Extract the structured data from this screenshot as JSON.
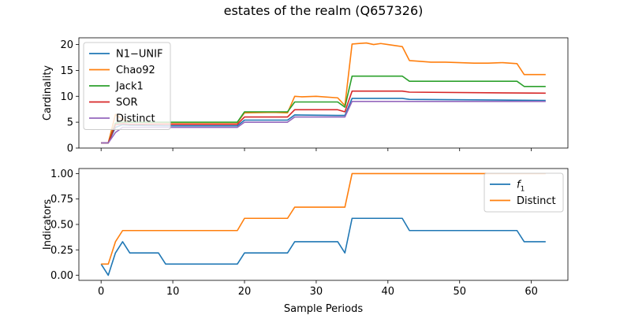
{
  "title": "estates of the realm (Q657326)",
  "chart_data": [
    {
      "type": "line",
      "ylabel": "Cardinality",
      "xlabel": "",
      "xlim": [
        -3.1,
        65.1
      ],
      "ylim": [
        0,
        21.3
      ],
      "xticks": [
        0,
        10,
        20,
        30,
        40,
        50,
        60
      ],
      "yticks": [
        0,
        5,
        10,
        15,
        20
      ],
      "ytick_labels": [
        "0",
        "5",
        "10",
        "15",
        "20"
      ],
      "legend": "top-left",
      "series": [
        {
          "name": "N1−UNIF",
          "color": "#1f77b4",
          "x": [
            0,
            1,
            2,
            3,
            4,
            9,
            19,
            20,
            26,
            27,
            33,
            34,
            35,
            42,
            43,
            62
          ],
          "y": [
            1,
            1,
            4,
            4.5,
            4.4,
            4.3,
            4.3,
            5.4,
            5.4,
            6.4,
            6.3,
            6.3,
            9.6,
            9.6,
            9.4,
            9.2
          ]
        },
        {
          "name": "Chao92",
          "color": "#ff7f0e",
          "x": [
            0,
            1,
            2,
            3,
            4,
            9,
            19,
            20,
            24,
            26,
            27,
            28,
            30,
            33,
            34,
            35,
            36,
            37,
            38,
            39,
            40,
            42,
            43,
            44,
            46,
            48,
            50,
            52,
            54,
            56,
            58,
            59,
            62
          ],
          "y": [
            1,
            1,
            6.5,
            5.5,
            5,
            4.9,
            4.9,
            6.8,
            6.9,
            6.8,
            10,
            9.9,
            10,
            9.7,
            8.2,
            20.1,
            20.2,
            20.3,
            20,
            20.2,
            20,
            19.6,
            16.9,
            16.8,
            16.6,
            16.6,
            16.5,
            16.4,
            16.4,
            16.5,
            16.3,
            14.2,
            14.2
          ]
        },
        {
          "name": "Jack1",
          "color": "#2ca02c",
          "x": [
            0,
            1,
            2,
            3,
            4,
            9,
            19,
            20,
            26,
            27,
            33,
            34,
            35,
            42,
            43,
            58,
            59,
            62
          ],
          "y": [
            1,
            1,
            4.8,
            5,
            5,
            5,
            5,
            7,
            7,
            8.9,
            8.9,
            7.9,
            13.9,
            13.9,
            12.9,
            12.9,
            11.9,
            11.9
          ]
        },
        {
          "name": "SOR",
          "color": "#d62728",
          "x": [
            0,
            1,
            2,
            3,
            4,
            9,
            19,
            20,
            26,
            27,
            33,
            34,
            35,
            42,
            43,
            62
          ],
          "y": [
            1,
            1,
            4.5,
            4.7,
            4.6,
            4.6,
            4.6,
            6,
            6,
            7.4,
            7.4,
            7,
            11,
            11,
            10.8,
            10.6
          ]
        },
        {
          "name": "Distinct",
          "color": "#9467bd",
          "x": [
            0,
            1,
            2,
            3,
            4,
            9,
            19,
            20,
            26,
            27,
            33,
            34,
            35,
            62
          ],
          "y": [
            1,
            1,
            3,
            4,
            4,
            4,
            4,
            5,
            5,
            6,
            6,
            6,
            9,
            9
          ]
        }
      ]
    },
    {
      "type": "line",
      "ylabel": "Indicators",
      "xlabel": "Sample Periods",
      "xlim": [
        -3.1,
        65.1
      ],
      "ylim": [
        -0.05,
        1.05
      ],
      "xticks": [
        0,
        10,
        20,
        30,
        40,
        50,
        60
      ],
      "xtick_labels": [
        "0",
        "10",
        "20",
        "30",
        "40",
        "50",
        "60"
      ],
      "yticks": [
        0,
        0.25,
        0.5,
        0.75,
        1
      ],
      "ytick_labels": [
        "0.00",
        "0.25",
        "0.50",
        "0.75",
        "1.00"
      ],
      "legend": "top-right",
      "series": [
        {
          "name": "f1",
          "color": "#1f77b4",
          "x": [
            0,
            1,
            2,
            3,
            4,
            8,
            9,
            19,
            20,
            26,
            27,
            33,
            34,
            35,
            42,
            43,
            58,
            59,
            62
          ],
          "y": [
            0.11,
            0,
            0.22,
            0.33,
            0.22,
            0.22,
            0.11,
            0.11,
            0.22,
            0.22,
            0.33,
            0.33,
            0.22,
            0.56,
            0.56,
            0.44,
            0.44,
            0.33,
            0.33
          ]
        },
        {
          "name": "Distinct",
          "color": "#ff7f0e",
          "x": [
            0,
            1,
            2,
            3,
            19,
            20,
            26,
            27,
            34,
            35,
            62
          ],
          "y": [
            0.11,
            0.11,
            0.33,
            0.44,
            0.44,
            0.56,
            0.56,
            0.67,
            0.67,
            1,
            1
          ]
        }
      ]
    }
  ]
}
